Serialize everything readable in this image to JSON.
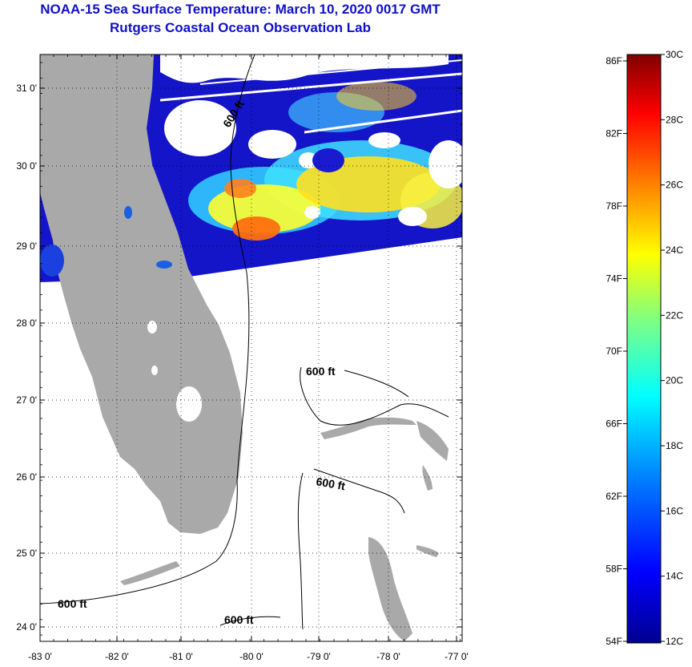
{
  "header": {
    "title": "NOAA-15 Sea Surface Temperature:  March 10, 2020 0017 GMT",
    "subtitle": "Rutgers Coastal Ocean Observation Lab"
  },
  "map": {
    "lat_ticks": [
      "31 0'",
      "30 0'",
      "29 0'",
      "28 0'",
      "27 0'",
      "26 0'",
      "25 0'",
      "24 0'"
    ],
    "lon_ticks": [
      "-83 0'",
      "-82 0'",
      "-81 0'",
      "-80 0'",
      "-79 0'",
      "-78 0'",
      "-77 0'"
    ],
    "contour_label": "600 ft",
    "colors": {
      "land": "#a9a9a9",
      "cloud": "#ffffff",
      "frame": "#000000",
      "grid": "#000000"
    }
  },
  "colorbar": {
    "fahrenheit_labels": [
      "86F",
      "82F",
      "78F",
      "74F",
      "70F",
      "66F",
      "62F",
      "58F",
      "54F"
    ],
    "celsius_labels": [
      "30C",
      "28C",
      "26C",
      "24C",
      "22C",
      "20C",
      "18C",
      "16C",
      "14C",
      "12C"
    ],
    "colormap": [
      "#00008f",
      "#0000ff",
      "#0080ff",
      "#00ffff",
      "#80ff80",
      "#ffff00",
      "#ff8000",
      "#ff0000",
      "#800000"
    ]
  }
}
